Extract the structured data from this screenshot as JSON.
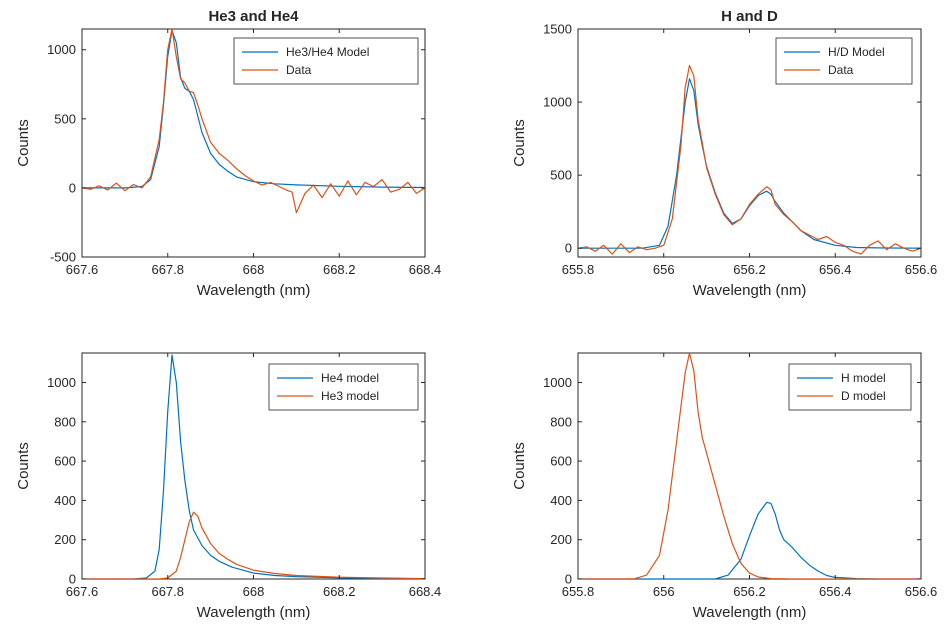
{
  "colors": {
    "blue": "#0072BD",
    "orange": "#D95319",
    "axis": "#262626"
  },
  "chart_data": [
    {
      "type": "line",
      "title": "He3 and He4",
      "xlabel": "Wavelength (nm)",
      "ylabel": "Counts",
      "xlim": [
        667.6,
        668.4
      ],
      "ylim": [
        -500,
        1150
      ],
      "xticks": [
        667.6,
        667.8,
        668,
        668.2,
        668.4
      ],
      "xtick_labels": [
        "667.6",
        "667.8",
        "668",
        "668.2",
        "668.4"
      ],
      "yticks": [
        -500,
        0,
        500,
        1000
      ],
      "ytick_labels": [
        "-500",
        "0",
        "500",
        "1000"
      ],
      "grid": false,
      "legend_position": "top-right",
      "series": [
        {
          "name": "He3/He4 Model",
          "color": "#0072BD",
          "x": [
            667.6,
            667.7,
            667.74,
            667.76,
            667.78,
            667.79,
            667.8,
            667.81,
            667.82,
            667.83,
            667.84,
            667.85,
            667.86,
            667.87,
            667.88,
            667.9,
            667.92,
            667.94,
            667.96,
            668.0,
            668.05,
            668.1,
            668.2,
            668.3,
            668.4
          ],
          "y": [
            0,
            0,
            10,
            60,
            300,
            600,
            950,
            1140,
            1050,
            800,
            720,
            700,
            640,
            520,
            400,
            250,
            170,
            120,
            80,
            45,
            30,
            22,
            12,
            6,
            3
          ]
        },
        {
          "name": "Data",
          "color": "#D95319",
          "x": [
            667.6,
            667.62,
            667.64,
            667.66,
            667.68,
            667.7,
            667.72,
            667.74,
            667.76,
            667.78,
            667.79,
            667.8,
            667.81,
            667.82,
            667.83,
            667.84,
            667.85,
            667.86,
            667.87,
            667.88,
            667.9,
            667.92,
            667.94,
            667.96,
            667.98,
            668.0,
            668.02,
            668.04,
            668.06,
            668.08,
            668.09,
            668.1,
            668.12,
            668.14,
            668.16,
            668.18,
            668.2,
            668.22,
            668.24,
            668.26,
            668.28,
            668.3,
            668.32,
            668.34,
            668.36,
            668.38,
            668.4
          ],
          "y": [
            0,
            -10,
            15,
            -15,
            35,
            -20,
            25,
            0,
            80,
            350,
            620,
            1000,
            1150,
            950,
            790,
            760,
            700,
            690,
            600,
            500,
            330,
            250,
            200,
            140,
            90,
            50,
            20,
            40,
            10,
            -20,
            -30,
            -180,
            -40,
            20,
            -70,
            30,
            -60,
            50,
            -50,
            40,
            10,
            60,
            -30,
            -10,
            40,
            -40,
            0
          ]
        }
      ]
    },
    {
      "type": "line",
      "title": "H and D",
      "xlabel": "Wavelength (nm)",
      "ylabel": "Counts",
      "xlim": [
        655.8,
        656.6
      ],
      "ylim": [
        -60,
        1500
      ],
      "xticks": [
        655.8,
        656,
        656.2,
        656.4,
        656.6
      ],
      "xtick_labels": [
        "655.8",
        "656",
        "656.2",
        "656.4",
        "656.6"
      ],
      "yticks": [
        0,
        500,
        1000,
        1500
      ],
      "ytick_labels": [
        "0",
        "500",
        "1000",
        "1500"
      ],
      "grid": false,
      "legend_position": "top-right",
      "series": [
        {
          "name": "H/D Model",
          "color": "#0072BD",
          "x": [
            655.8,
            655.95,
            655.99,
            656.01,
            656.03,
            656.05,
            656.06,
            656.07,
            656.08,
            656.09,
            656.1,
            656.12,
            656.14,
            656.16,
            656.18,
            656.2,
            656.22,
            656.24,
            656.25,
            656.26,
            656.28,
            656.3,
            656.32,
            656.35,
            656.4,
            656.45,
            656.5,
            656.6
          ],
          "y": [
            0,
            0,
            20,
            150,
            500,
            1000,
            1160,
            1080,
            850,
            700,
            560,
            380,
            240,
            170,
            200,
            290,
            360,
            390,
            370,
            320,
            240,
            180,
            120,
            60,
            20,
            5,
            2,
            0
          ]
        },
        {
          "name": "Data",
          "color": "#D95319",
          "x": [
            655.8,
            655.82,
            655.84,
            655.86,
            655.88,
            655.9,
            655.92,
            655.94,
            655.96,
            655.98,
            656.0,
            656.02,
            656.04,
            656.05,
            656.06,
            656.07,
            656.08,
            656.09,
            656.1,
            656.12,
            656.14,
            656.16,
            656.18,
            656.2,
            656.22,
            656.24,
            656.25,
            656.26,
            656.28,
            656.3,
            656.32,
            656.34,
            656.36,
            656.38,
            656.4,
            656.42,
            656.44,
            656.46,
            656.48,
            656.5,
            656.52,
            656.54,
            656.56,
            656.58,
            656.6
          ],
          "y": [
            0,
            10,
            -20,
            20,
            -40,
            30,
            -30,
            10,
            -10,
            0,
            20,
            200,
            700,
            1100,
            1250,
            1180,
            880,
            720,
            550,
            370,
            230,
            160,
            200,
            300,
            370,
            420,
            400,
            300,
            230,
            180,
            120,
            90,
            60,
            80,
            40,
            20,
            -20,
            -40,
            20,
            50,
            -10,
            30,
            0,
            -20,
            0
          ]
        }
      ]
    },
    {
      "type": "line",
      "title": "",
      "xlabel": "Wavelength (nm)",
      "ylabel": "Counts",
      "xlim": [
        667.6,
        668.4
      ],
      "ylim": [
        0,
        1150
      ],
      "xticks": [
        667.6,
        667.8,
        668,
        668.2,
        668.4
      ],
      "xtick_labels": [
        "667.6",
        "667.8",
        "668",
        "668.2",
        "668.4"
      ],
      "yticks": [
        0,
        200,
        400,
        600,
        800,
        1000
      ],
      "ytick_labels": [
        "0",
        "200",
        "400",
        "600",
        "800",
        "1000"
      ],
      "grid": false,
      "legend_position": "top-right",
      "series": [
        {
          "name": "He4 model",
          "color": "#0072BD",
          "x": [
            667.6,
            667.72,
            667.75,
            667.77,
            667.78,
            667.79,
            667.8,
            667.81,
            667.82,
            667.83,
            667.84,
            667.85,
            667.86,
            667.88,
            667.9,
            667.92,
            667.95,
            668.0,
            668.05,
            668.1,
            668.2,
            668.3,
            668.4
          ],
          "y": [
            0,
            0,
            5,
            40,
            150,
            450,
            850,
            1140,
            1000,
            700,
            500,
            350,
            250,
            170,
            120,
            90,
            60,
            30,
            18,
            12,
            6,
            3,
            1
          ]
        },
        {
          "name": "He3 model",
          "color": "#D95319",
          "x": [
            667.6,
            667.78,
            667.8,
            667.82,
            667.83,
            667.84,
            667.85,
            667.86,
            667.87,
            667.88,
            667.9,
            667.92,
            667.94,
            667.96,
            668.0,
            668.05,
            668.1,
            668.2,
            668.3,
            668.4
          ],
          "y": [
            0,
            0,
            5,
            40,
            110,
            200,
            290,
            340,
            320,
            260,
            180,
            130,
            100,
            75,
            45,
            28,
            18,
            9,
            5,
            2
          ]
        }
      ]
    },
    {
      "type": "line",
      "title": "",
      "xlabel": "Wavelength (nm)",
      "ylabel": "Counts",
      "xlim": [
        655.8,
        656.6
      ],
      "ylim": [
        0,
        1150
      ],
      "xticks": [
        655.8,
        656,
        656.2,
        656.4,
        656.6
      ],
      "xtick_labels": [
        "655.8",
        "656",
        "656.2",
        "656.4",
        "656.6"
      ],
      "yticks": [
        0,
        200,
        400,
        600,
        800,
        1000
      ],
      "ytick_labels": [
        "0",
        "200",
        "400",
        "600",
        "800",
        "1000"
      ],
      "grid": false,
      "legend_position": "top-right",
      "series": [
        {
          "name": "H model",
          "color": "#0072BD",
          "x": [
            655.8,
            656.12,
            656.15,
            656.18,
            656.2,
            656.22,
            656.24,
            656.25,
            656.26,
            656.27,
            656.28,
            656.3,
            656.32,
            656.34,
            656.36,
            656.38,
            656.4,
            656.45,
            656.5,
            656.6
          ],
          "y": [
            0,
            0,
            20,
            100,
            220,
            330,
            390,
            385,
            330,
            250,
            200,
            160,
            110,
            70,
            40,
            18,
            8,
            2,
            0,
            0
          ]
        },
        {
          "name": "D model",
          "color": "#D95319",
          "x": [
            655.8,
            655.93,
            655.96,
            655.99,
            656.01,
            656.03,
            656.05,
            656.06,
            656.07,
            656.08,
            656.09,
            656.1,
            656.12,
            656.14,
            656.16,
            656.18,
            656.2,
            656.22,
            656.25,
            656.3,
            656.4,
            656.6
          ],
          "y": [
            0,
            0,
            20,
            120,
            350,
            700,
            1050,
            1150,
            1060,
            850,
            720,
            640,
            480,
            320,
            180,
            80,
            30,
            10,
            2,
            0,
            0,
            0
          ]
        }
      ]
    }
  ]
}
